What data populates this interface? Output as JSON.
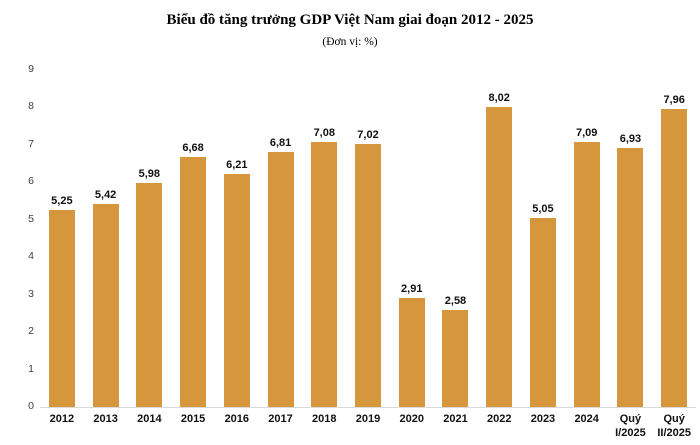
{
  "chart_data": {
    "type": "bar",
    "title": "Biểu đồ tăng trưởng GDP Việt Nam giai đoạn 2012 - 2025",
    "subtitle": "(Đơn vị: %)",
    "categories": [
      "2012",
      "2013",
      "2014",
      "2015",
      "2016",
      "2017",
      "2018",
      "2019",
      "2020",
      "2021",
      "2022",
      "2023",
      "2024",
      "Quý\nI/2025",
      "Quý\nII/2025"
    ],
    "values": [
      5.25,
      5.42,
      5.98,
      6.68,
      6.21,
      6.81,
      7.08,
      7.02,
      2.91,
      2.58,
      8.02,
      5.05,
      7.09,
      6.93,
      7.96
    ],
    "value_labels": [
      "5,25",
      "5,42",
      "5,98",
      "6,68",
      "6,21",
      "6,81",
      "7,08",
      "7,02",
      "2,91",
      "2,58",
      "8,02",
      "5,05",
      "7,09",
      "6,93",
      "7,96"
    ],
    "xlabel": "",
    "ylabel": "",
    "ylim": [
      0,
      9
    ],
    "yticks": [
      0,
      1,
      2,
      3,
      4,
      5,
      6,
      7,
      8,
      9
    ],
    "grid": false,
    "legend": false,
    "bar_color": "#d6973c",
    "baseline_color": "#d9d9d9",
    "label_color": "#111111",
    "ytick_color": "#404040"
  }
}
